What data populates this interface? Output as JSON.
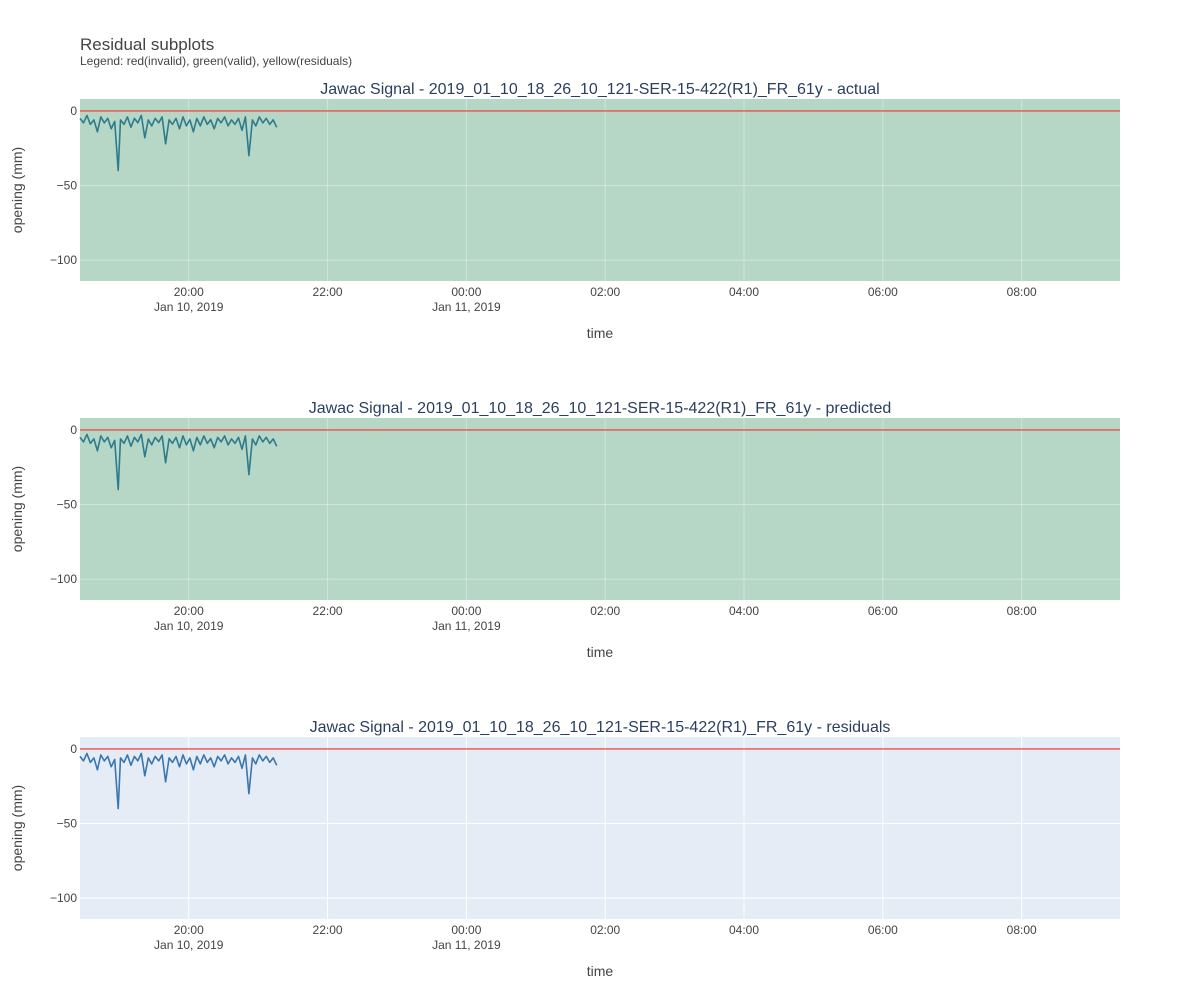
{
  "figure": {
    "title": "Residual subplots",
    "subtitle": "Legend: red(invalid), green(valid), yellow(residuals)"
  },
  "colors": {
    "valid_bg": "#b6d7c6",
    "default_bg": "#e5ecf6",
    "signal_on_valid": "#2e7b8c",
    "signal_default": "#3a77ae",
    "reference_line": "#e8504a",
    "grid": "#ffffff"
  },
  "chart_data": [
    {
      "type": "line",
      "title": "Jawac Signal - 2019_01_10_18_26_10_121-SER-15-422(R1)_FR_61y - actual",
      "xlabel": "time",
      "ylabel": "opening (mm)",
      "background": "valid",
      "xlim": [
        "2019-01-10 18:26",
        "2019-01-11 09:25"
      ],
      "ylim": [
        -114,
        8
      ],
      "xticks": [
        {
          "t": "2019-01-10 20:00",
          "label": "20:00",
          "date": "Jan 10, 2019"
        },
        {
          "t": "2019-01-10 22:00",
          "label": "22:00",
          "date": ""
        },
        {
          "t": "2019-01-11 00:00",
          "label": "00:00",
          "date": "Jan 11, 2019"
        },
        {
          "t": "2019-01-11 02:00",
          "label": "02:00",
          "date": ""
        },
        {
          "t": "2019-01-11 04:00",
          "label": "04:00",
          "date": ""
        },
        {
          "t": "2019-01-11 06:00",
          "label": "06:00",
          "date": ""
        },
        {
          "t": "2019-01-11 08:00",
          "label": "08:00",
          "date": ""
        }
      ],
      "yticks": [
        0,
        -50,
        -100
      ],
      "reference_line": 0,
      "series": [
        {
          "points": [
            [
              "2019-01-10 18:26",
              -5
            ],
            [
              "2019-01-10 18:29",
              -8
            ],
            [
              "2019-01-10 18:32",
              -3
            ],
            [
              "2019-01-10 18:35",
              -9
            ],
            [
              "2019-01-10 18:38",
              -6
            ],
            [
              "2019-01-10 18:41",
              -14
            ],
            [
              "2019-01-10 18:44",
              -4
            ],
            [
              "2019-01-10 18:47",
              -8
            ],
            [
              "2019-01-10 18:50",
              -5
            ],
            [
              "2019-01-10 18:53",
              -12
            ],
            [
              "2019-01-10 18:56",
              -7
            ],
            [
              "2019-01-10 18:59",
              -40
            ],
            [
              "2019-01-10 19:01",
              -6
            ],
            [
              "2019-01-10 19:04",
              -9
            ],
            [
              "2019-01-10 19:07",
              -4
            ],
            [
              "2019-01-10 19:10",
              -11
            ],
            [
              "2019-01-10 19:13",
              -5
            ],
            [
              "2019-01-10 19:16",
              -8
            ],
            [
              "2019-01-10 19:19",
              -3
            ],
            [
              "2019-01-10 19:22",
              -18
            ],
            [
              "2019-01-10 19:25",
              -6
            ],
            [
              "2019-01-10 19:28",
              -10
            ],
            [
              "2019-01-10 19:31",
              -5
            ],
            [
              "2019-01-10 19:34",
              -8
            ],
            [
              "2019-01-10 19:37",
              -4
            ],
            [
              "2019-01-10 19:40",
              -22
            ],
            [
              "2019-01-10 19:43",
              -6
            ],
            [
              "2019-01-10 19:46",
              -9
            ],
            [
              "2019-01-10 19:49",
              -5
            ],
            [
              "2019-01-10 19:52",
              -12
            ],
            [
              "2019-01-10 19:55",
              -4
            ],
            [
              "2019-01-10 19:58",
              -10
            ],
            [
              "2019-01-10 20:01",
              -6
            ],
            [
              "2019-01-10 20:04",
              -14
            ],
            [
              "2019-01-10 20:07",
              -5
            ],
            [
              "2019-01-10 20:10",
              -10
            ],
            [
              "2019-01-10 20:13",
              -4
            ],
            [
              "2019-01-10 20:16",
              -9
            ],
            [
              "2019-01-10 20:19",
              -6
            ],
            [
              "2019-01-10 20:22",
              -12
            ],
            [
              "2019-01-10 20:25",
              -5
            ],
            [
              "2019-01-10 20:28",
              -8
            ],
            [
              "2019-01-10 20:31",
              -4
            ],
            [
              "2019-01-10 20:34",
              -10
            ],
            [
              "2019-01-10 20:37",
              -6
            ],
            [
              "2019-01-10 20:40",
              -9
            ],
            [
              "2019-01-10 20:43",
              -5
            ],
            [
              "2019-01-10 20:46",
              -13
            ],
            [
              "2019-01-10 20:49",
              -4
            ],
            [
              "2019-01-10 20:52",
              -30
            ],
            [
              "2019-01-10 20:55",
              -6
            ],
            [
              "2019-01-10 20:58",
              -10
            ],
            [
              "2019-01-10 21:01",
              -4
            ],
            [
              "2019-01-10 21:04",
              -8
            ],
            [
              "2019-01-10 21:07",
              -5
            ],
            [
              "2019-01-10 21:10",
              -9
            ],
            [
              "2019-01-10 21:13",
              -6
            ],
            [
              "2019-01-10 21:16",
              -11
            ]
          ]
        }
      ]
    },
    {
      "type": "line",
      "title": "Jawac Signal - 2019_01_10_18_26_10_121-SER-15-422(R1)_FR_61y - predicted",
      "xlabel": "time",
      "ylabel": "opening (mm)",
      "background": "valid",
      "xlim": [
        "2019-01-10 18:26",
        "2019-01-11 09:25"
      ],
      "ylim": [
        -114,
        8
      ],
      "xticks": [
        {
          "t": "2019-01-10 20:00",
          "label": "20:00",
          "date": "Jan 10, 2019"
        },
        {
          "t": "2019-01-10 22:00",
          "label": "22:00",
          "date": ""
        },
        {
          "t": "2019-01-11 00:00",
          "label": "00:00",
          "date": "Jan 11, 2019"
        },
        {
          "t": "2019-01-11 02:00",
          "label": "02:00",
          "date": ""
        },
        {
          "t": "2019-01-11 04:00",
          "label": "04:00",
          "date": ""
        },
        {
          "t": "2019-01-11 06:00",
          "label": "06:00",
          "date": ""
        },
        {
          "t": "2019-01-11 08:00",
          "label": "08:00",
          "date": ""
        }
      ],
      "yticks": [
        0,
        -50,
        -100
      ],
      "reference_line": 0,
      "series": [
        {
          "points": [
            [
              "2019-01-10 18:26",
              -5
            ],
            [
              "2019-01-10 18:29",
              -8
            ],
            [
              "2019-01-10 18:32",
              -3
            ],
            [
              "2019-01-10 18:35",
              -9
            ],
            [
              "2019-01-10 18:38",
              -6
            ],
            [
              "2019-01-10 18:41",
              -14
            ],
            [
              "2019-01-10 18:44",
              -4
            ],
            [
              "2019-01-10 18:47",
              -8
            ],
            [
              "2019-01-10 18:50",
              -5
            ],
            [
              "2019-01-10 18:53",
              -12
            ],
            [
              "2019-01-10 18:56",
              -7
            ],
            [
              "2019-01-10 18:59",
              -40
            ],
            [
              "2019-01-10 19:01",
              -6
            ],
            [
              "2019-01-10 19:04",
              -9
            ],
            [
              "2019-01-10 19:07",
              -4
            ],
            [
              "2019-01-10 19:10",
              -11
            ],
            [
              "2019-01-10 19:13",
              -5
            ],
            [
              "2019-01-10 19:16",
              -8
            ],
            [
              "2019-01-10 19:19",
              -3
            ],
            [
              "2019-01-10 19:22",
              -18
            ],
            [
              "2019-01-10 19:25",
              -6
            ],
            [
              "2019-01-10 19:28",
              -10
            ],
            [
              "2019-01-10 19:31",
              -5
            ],
            [
              "2019-01-10 19:34",
              -8
            ],
            [
              "2019-01-10 19:37",
              -4
            ],
            [
              "2019-01-10 19:40",
              -22
            ],
            [
              "2019-01-10 19:43",
              -6
            ],
            [
              "2019-01-10 19:46",
              -9
            ],
            [
              "2019-01-10 19:49",
              -5
            ],
            [
              "2019-01-10 19:52",
              -12
            ],
            [
              "2019-01-10 19:55",
              -4
            ],
            [
              "2019-01-10 19:58",
              -10
            ],
            [
              "2019-01-10 20:01",
              -6
            ],
            [
              "2019-01-10 20:04",
              -14
            ],
            [
              "2019-01-10 20:07",
              -5
            ],
            [
              "2019-01-10 20:10",
              -10
            ],
            [
              "2019-01-10 20:13",
              -4
            ],
            [
              "2019-01-10 20:16",
              -9
            ],
            [
              "2019-01-10 20:19",
              -6
            ],
            [
              "2019-01-10 20:22",
              -12
            ],
            [
              "2019-01-10 20:25",
              -5
            ],
            [
              "2019-01-10 20:28",
              -8
            ],
            [
              "2019-01-10 20:31",
              -4
            ],
            [
              "2019-01-10 20:34",
              -10
            ],
            [
              "2019-01-10 20:37",
              -6
            ],
            [
              "2019-01-10 20:40",
              -9
            ],
            [
              "2019-01-10 20:43",
              -5
            ],
            [
              "2019-01-10 20:46",
              -13
            ],
            [
              "2019-01-10 20:49",
              -4
            ],
            [
              "2019-01-10 20:52",
              -30
            ],
            [
              "2019-01-10 20:55",
              -6
            ],
            [
              "2019-01-10 20:58",
              -10
            ],
            [
              "2019-01-10 21:01",
              -4
            ],
            [
              "2019-01-10 21:04",
              -8
            ],
            [
              "2019-01-10 21:07",
              -5
            ],
            [
              "2019-01-10 21:10",
              -9
            ],
            [
              "2019-01-10 21:13",
              -6
            ],
            [
              "2019-01-10 21:16",
              -11
            ]
          ]
        }
      ]
    },
    {
      "type": "line",
      "title": "Jawac Signal - 2019_01_10_18_26_10_121-SER-15-422(R1)_FR_61y - residuals",
      "xlabel": "time",
      "ylabel": "opening (mm)",
      "background": "default",
      "xlim": [
        "2019-01-10 18:26",
        "2019-01-11 09:25"
      ],
      "ylim": [
        -114,
        8
      ],
      "xticks": [
        {
          "t": "2019-01-10 20:00",
          "label": "20:00",
          "date": "Jan 10, 2019"
        },
        {
          "t": "2019-01-10 22:00",
          "label": "22:00",
          "date": ""
        },
        {
          "t": "2019-01-11 00:00",
          "label": "00:00",
          "date": "Jan 11, 2019"
        },
        {
          "t": "2019-01-11 02:00",
          "label": "02:00",
          "date": ""
        },
        {
          "t": "2019-01-11 04:00",
          "label": "04:00",
          "date": ""
        },
        {
          "t": "2019-01-11 06:00",
          "label": "06:00",
          "date": ""
        },
        {
          "t": "2019-01-11 08:00",
          "label": "08:00",
          "date": ""
        }
      ],
      "yticks": [
        0,
        -50,
        -100
      ],
      "reference_line": 0,
      "series": [
        {
          "points": [
            [
              "2019-01-10 18:26",
              -5
            ],
            [
              "2019-01-10 18:29",
              -8
            ],
            [
              "2019-01-10 18:32",
              -3
            ],
            [
              "2019-01-10 18:35",
              -9
            ],
            [
              "2019-01-10 18:38",
              -6
            ],
            [
              "2019-01-10 18:41",
              -14
            ],
            [
              "2019-01-10 18:44",
              -4
            ],
            [
              "2019-01-10 18:47",
              -8
            ],
            [
              "2019-01-10 18:50",
              -5
            ],
            [
              "2019-01-10 18:53",
              -12
            ],
            [
              "2019-01-10 18:56",
              -7
            ],
            [
              "2019-01-10 18:59",
              -40
            ],
            [
              "2019-01-10 19:01",
              -6
            ],
            [
              "2019-01-10 19:04",
              -9
            ],
            [
              "2019-01-10 19:07",
              -4
            ],
            [
              "2019-01-10 19:10",
              -11
            ],
            [
              "2019-01-10 19:13",
              -5
            ],
            [
              "2019-01-10 19:16",
              -8
            ],
            [
              "2019-01-10 19:19",
              -3
            ],
            [
              "2019-01-10 19:22",
              -18
            ],
            [
              "2019-01-10 19:25",
              -6
            ],
            [
              "2019-01-10 19:28",
              -10
            ],
            [
              "2019-01-10 19:31",
              -5
            ],
            [
              "2019-01-10 19:34",
              -8
            ],
            [
              "2019-01-10 19:37",
              -4
            ],
            [
              "2019-01-10 19:40",
              -22
            ],
            [
              "2019-01-10 19:43",
              -6
            ],
            [
              "2019-01-10 19:46",
              -9
            ],
            [
              "2019-01-10 19:49",
              -5
            ],
            [
              "2019-01-10 19:52",
              -12
            ],
            [
              "2019-01-10 19:55",
              -4
            ],
            [
              "2019-01-10 19:58",
              -10
            ],
            [
              "2019-01-10 20:01",
              -6
            ],
            [
              "2019-01-10 20:04",
              -14
            ],
            [
              "2019-01-10 20:07",
              -5
            ],
            [
              "2019-01-10 20:10",
              -10
            ],
            [
              "2019-01-10 20:13",
              -4
            ],
            [
              "2019-01-10 20:16",
              -9
            ],
            [
              "2019-01-10 20:19",
              -6
            ],
            [
              "2019-01-10 20:22",
              -12
            ],
            [
              "2019-01-10 20:25",
              -5
            ],
            [
              "2019-01-10 20:28",
              -8
            ],
            [
              "2019-01-10 20:31",
              -4
            ],
            [
              "2019-01-10 20:34",
              -10
            ],
            [
              "2019-01-10 20:37",
              -6
            ],
            [
              "2019-01-10 20:40",
              -9
            ],
            [
              "2019-01-10 20:43",
              -5
            ],
            [
              "2019-01-10 20:46",
              -13
            ],
            [
              "2019-01-10 20:49",
              -4
            ],
            [
              "2019-01-10 20:52",
              -30
            ],
            [
              "2019-01-10 20:55",
              -6
            ],
            [
              "2019-01-10 20:58",
              -10
            ],
            [
              "2019-01-10 21:01",
              -4
            ],
            [
              "2019-01-10 21:04",
              -8
            ],
            [
              "2019-01-10 21:07",
              -5
            ],
            [
              "2019-01-10 21:10",
              -9
            ],
            [
              "2019-01-10 21:13",
              -6
            ],
            [
              "2019-01-10 21:16",
              -11
            ]
          ]
        }
      ]
    }
  ]
}
